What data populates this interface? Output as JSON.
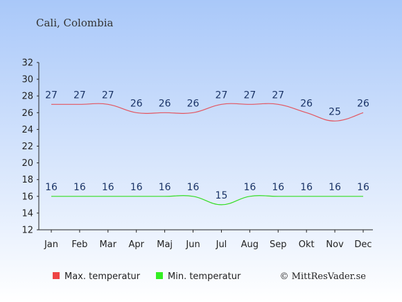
{
  "place": "Cali, Colombia",
  "copyright": "© MittResVader.se",
  "colors": {
    "max_line": "#e3555f",
    "min_line": "#33dd22",
    "max_swatch": "#ee4444",
    "min_swatch": "#33ee22",
    "label_text": "#1a3366",
    "bg_top": "#a9c8f9",
    "bg_bottom": "#ffffff"
  },
  "chart_data": {
    "type": "line",
    "title": "Cali, Colombia",
    "categories": [
      "Jan",
      "Feb",
      "Mar",
      "Apr",
      "Maj",
      "Jun",
      "Jul",
      "Aug",
      "Sep",
      "Okt",
      "Nov",
      "Dec"
    ],
    "series": [
      {
        "name": "Max. temperatur",
        "values": [
          27,
          27,
          27,
          26,
          26,
          26,
          27,
          27,
          27,
          26,
          25,
          26
        ]
      },
      {
        "name": "Min. temperatur",
        "values": [
          16,
          16,
          16,
          16,
          16,
          16,
          15,
          16,
          16,
          16,
          16,
          16
        ]
      }
    ],
    "ylim": [
      12,
      32
    ],
    "yticks": [
      12,
      14,
      16,
      18,
      20,
      22,
      24,
      26,
      28,
      30,
      32
    ],
    "grid": false,
    "legend": "bottom"
  }
}
